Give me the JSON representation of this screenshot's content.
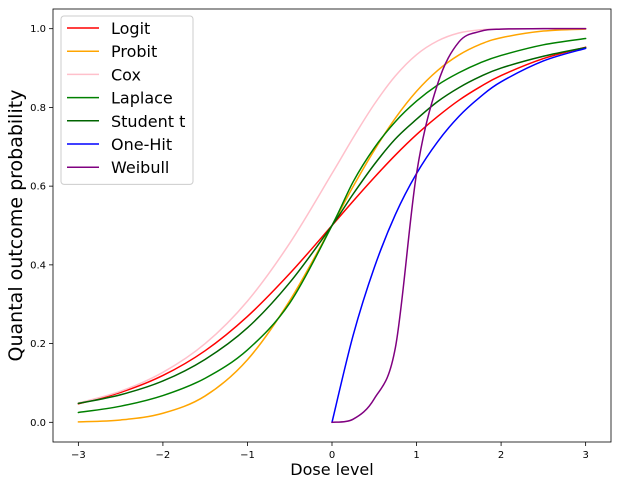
{
  "chart_data": {
    "type": "line",
    "title": "",
    "xlabel": "Dose level",
    "ylabel": "Quantal outcome probability",
    "xlim": [
      -3.3,
      3.3
    ],
    "ylim": [
      -0.05,
      1.05
    ],
    "xticks": [
      -3,
      -2,
      -1,
      0,
      1,
      2,
      3
    ],
    "xtick_labels": [
      "−3",
      "−2",
      "−1",
      "0",
      "1",
      "2",
      "3"
    ],
    "yticks": [
      0.0,
      0.2,
      0.4,
      0.6,
      0.8,
      1.0
    ],
    "ytick_labels": [
      "0.0",
      "0.2",
      "0.4",
      "0.6",
      "0.8",
      "1.0"
    ],
    "grid": false,
    "legend_position": "top-left",
    "x": [
      -3.0,
      -2.5,
      -2.0,
      -1.5,
      -1.0,
      -0.5,
      0.0,
      0.25,
      0.5,
      0.75,
      1.0,
      1.25,
      1.5,
      1.75,
      2.0,
      2.5,
      3.0
    ],
    "series": [
      {
        "name": "Logit",
        "color": "#ff0000",
        "values": [
          0.047,
          0.076,
          0.119,
          0.182,
          0.269,
          0.378,
          0.5,
          0.562,
          0.622,
          0.679,
          0.731,
          0.777,
          0.818,
          0.852,
          0.881,
          0.924,
          0.953
        ]
      },
      {
        "name": "Probit",
        "color": "#ffa500",
        "values": [
          0.001,
          0.006,
          0.023,
          0.067,
          0.159,
          0.309,
          0.5,
          0.599,
          0.691,
          0.773,
          0.841,
          0.894,
          0.933,
          0.96,
          0.977,
          0.994,
          0.999
        ]
      },
      {
        "name": "Cox",
        "color": "#ffc0cb",
        "values": [
          0.049,
          0.079,
          0.127,
          0.2,
          0.308,
          0.455,
          0.632,
          0.723,
          0.808,
          0.88,
          0.934,
          0.969,
          0.989,
          0.997,
          0.999,
          1.0,
          1.0
        ]
      },
      {
        "name": "Laplace",
        "color": "#008000",
        "values": [
          0.025,
          0.041,
          0.068,
          0.112,
          0.184,
          0.303,
          0.5,
          0.611,
          0.697,
          0.764,
          0.816,
          0.857,
          0.888,
          0.913,
          0.932,
          0.959,
          0.975
        ]
      },
      {
        "name": "Student t",
        "color": "#006400",
        "values": [
          0.048,
          0.07,
          0.105,
          0.16,
          0.24,
          0.355,
          0.5,
          0.58,
          0.655,
          0.72,
          0.77,
          0.815,
          0.85,
          0.878,
          0.9,
          0.93,
          0.952
        ]
      },
      {
        "name": "One-Hit",
        "color": "#0000ff",
        "values": [
          null,
          null,
          null,
          null,
          null,
          null,
          0.0,
          0.221,
          0.393,
          0.528,
          0.632,
          0.713,
          0.777,
          0.826,
          0.865,
          0.918,
          0.95
        ]
      },
      {
        "name": "Weibull",
        "color": "#800080",
        "values": [
          null,
          null,
          null,
          null,
          null,
          null,
          0.0,
          0.008,
          0.06,
          0.19,
          0.632,
          0.86,
          0.966,
          0.993,
          0.999,
          1.0,
          1.0
        ]
      }
    ]
  }
}
